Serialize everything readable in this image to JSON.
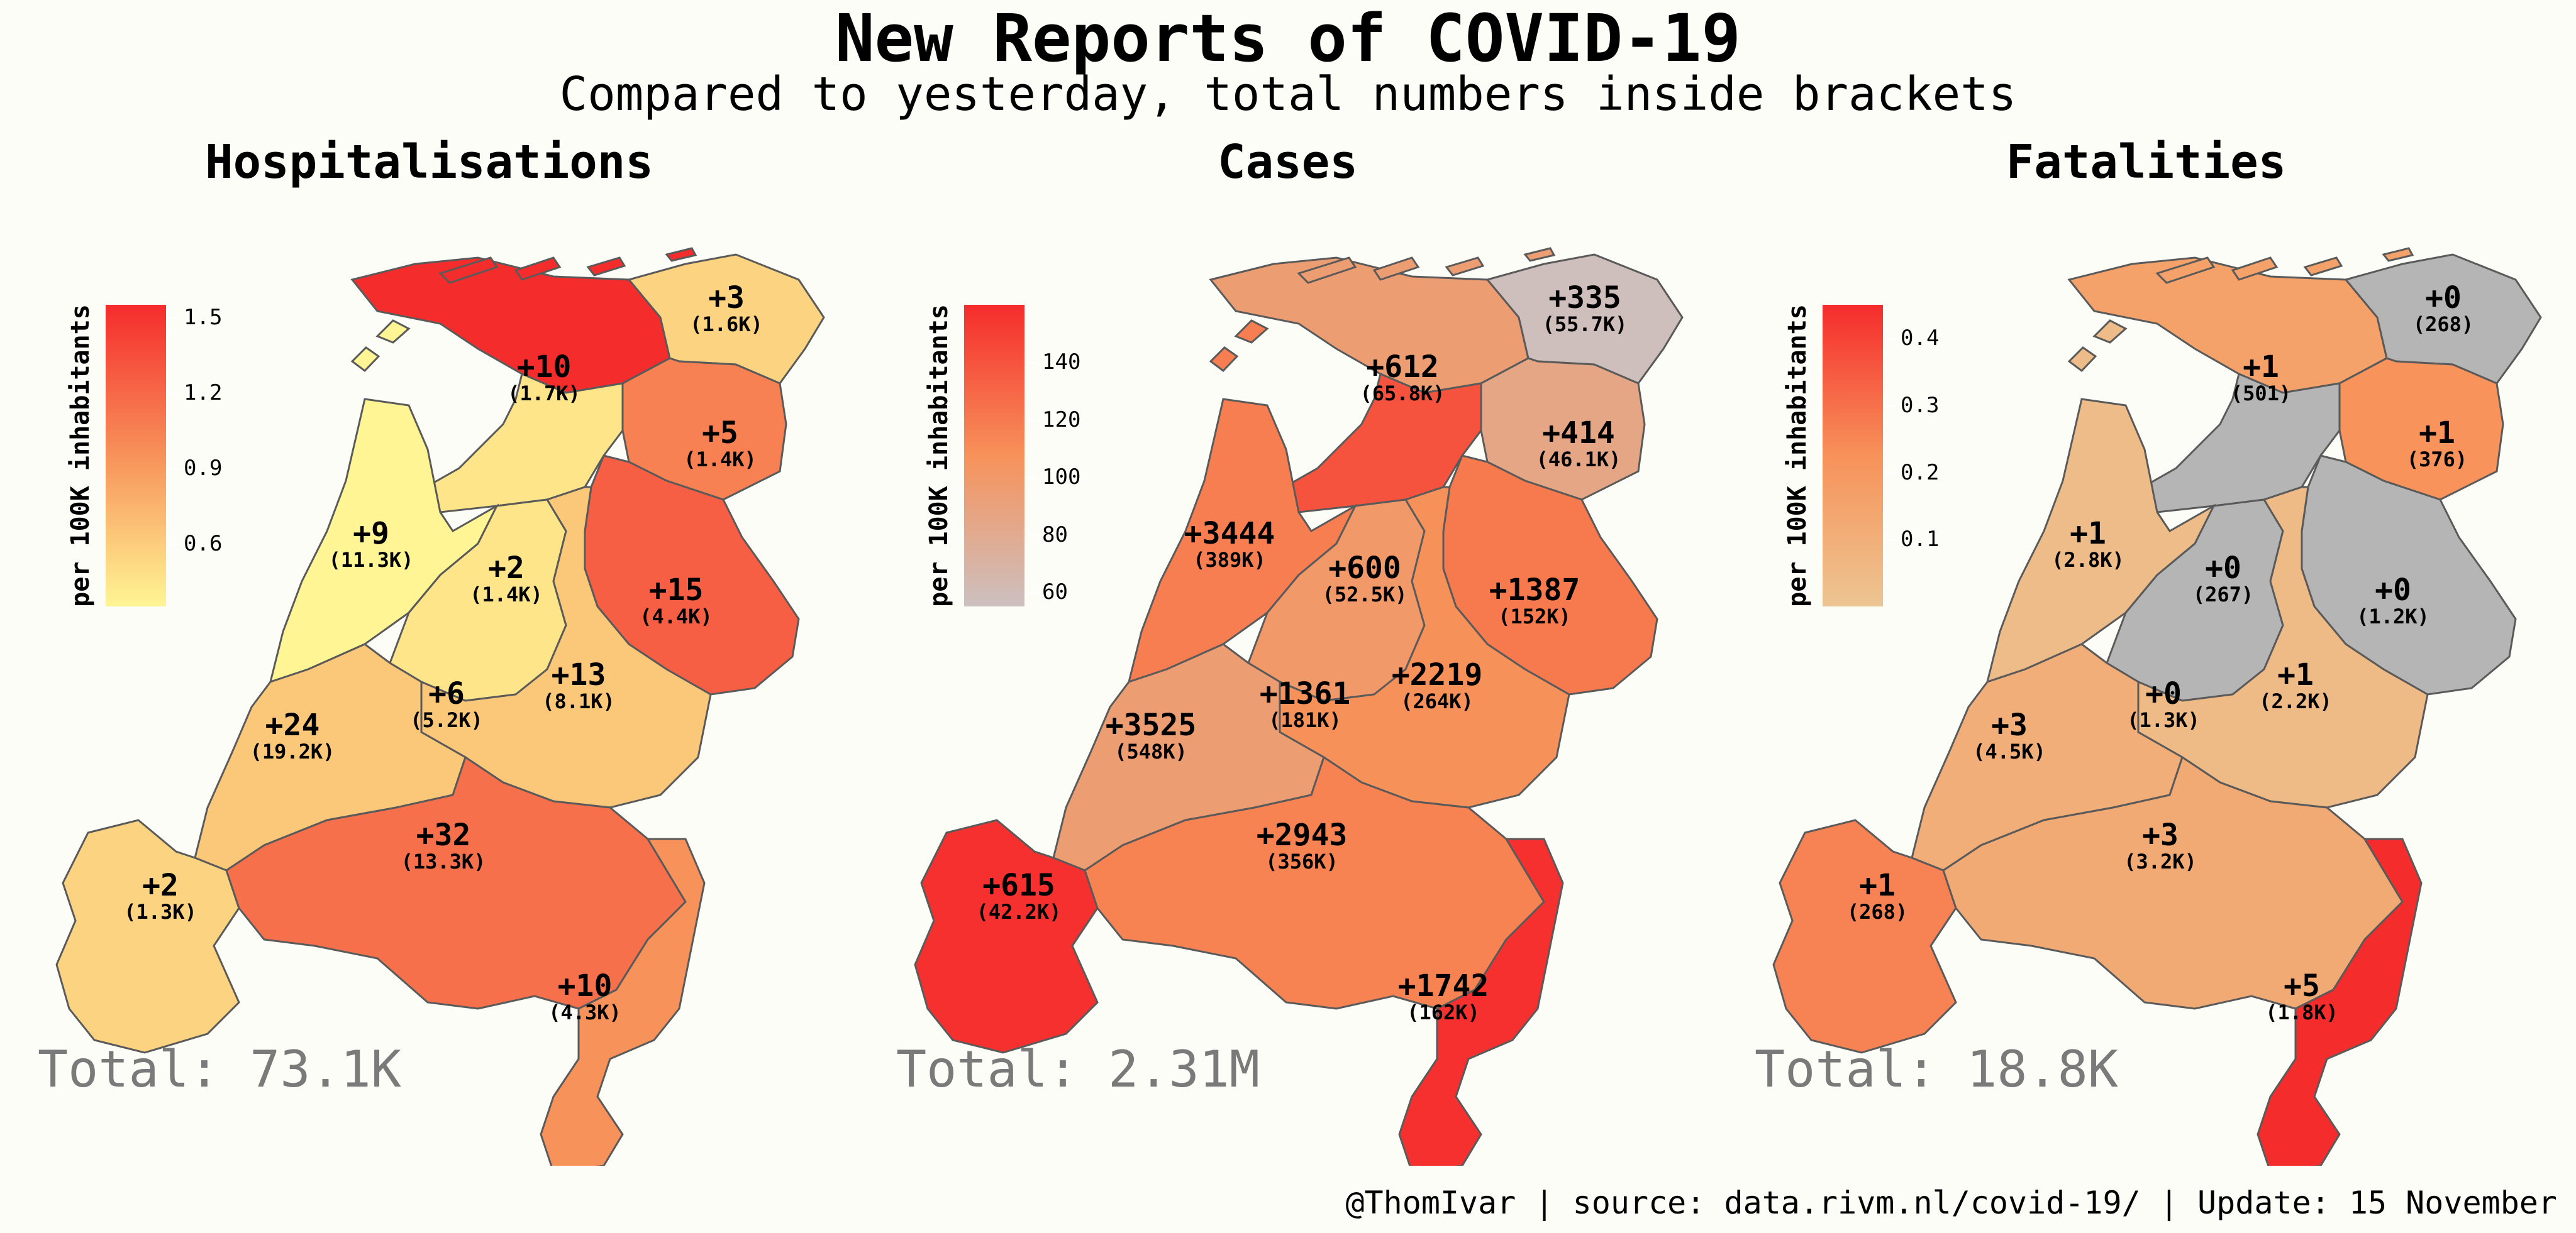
{
  "title": "New Reports of COVID-19",
  "subtitle": "Compared to yesterday, total numbers inside brackets",
  "footer": "@ThomIvar | source: data.rivm.nl/covid-19/ | Update: 15 November",
  "legend_title": "per 100K inhabitants",
  "panels": [
    {
      "title": "Hospitalisations",
      "total": "Total: 73.1K",
      "scale": {
        "min": 0.35,
        "max": 1.55,
        "low_color": "#fff594",
        "high_color": "#f52c2c"
      },
      "legend_ticks": [
        "1.5",
        "1.2",
        "0.9",
        "0.6"
      ],
      "legend_tick_values": [
        1.5,
        1.2,
        0.9,
        0.6
      ],
      "regions": {
        "groningen": {
          "change": "+3",
          "total": "(1.6K)",
          "value": 0.55
        },
        "friesland": {
          "change": "+10",
          "total": "(1.7K)",
          "value": 1.55
        },
        "drenthe": {
          "change": "+5",
          "total": "(1.4K)",
          "value": 1.05
        },
        "overijssel": {
          "change": "+15",
          "total": "(4.4K)",
          "value": 1.25
        },
        "flevoland": {
          "change": "+2",
          "total": "(1.4K)",
          "value": 0.45
        },
        "noord_holland": {
          "change": "+9",
          "total": "(11.3K)",
          "value": 0.35
        },
        "utrecht": {
          "change": "+6",
          "total": "(5.2K)",
          "value": 0.45
        },
        "gelderland": {
          "change": "+13",
          "total": "(8.1K)",
          "value": 0.62
        },
        "zuid_holland": {
          "change": "+24",
          "total": "(19.2K)",
          "value": 0.62
        },
        "zeeland": {
          "change": "+2",
          "total": "(1.3K)",
          "value": 0.55
        },
        "noord_brabant": {
          "change": "+32",
          "total": "(13.3K)",
          "value": 1.15
        },
        "limburg": {
          "change": "+10",
          "total": "(4.3K)",
          "value": 0.95
        }
      }
    },
    {
      "title": "Cases",
      "total": "Total: 2.31M",
      "scale": {
        "min": 55,
        "max": 160,
        "low_color": "#ccc0c0",
        "high_color": "#f52c2c"
      },
      "legend_ticks": [
        "140",
        "120",
        "100",
        "80",
        "60"
      ],
      "legend_tick_values": [
        140,
        120,
        100,
        80,
        60
      ],
      "regions": {
        "groningen": {
          "change": "+335",
          "total": "(55.7K)",
          "value": 57
        },
        "friesland": {
          "change": "+612",
          "total": "(65.8K)",
          "value": 95
        },
        "drenthe": {
          "change": "+414",
          "total": "(46.1K)",
          "value": 85
        },
        "overijssel": {
          "change": "+1387",
          "total": "(152K)",
          "value": 120
        },
        "flevoland": {
          "change": "+600",
          "total": "(52.5K)",
          "value": 140
        },
        "noord_holland": {
          "change": "+3444",
          "total": "(389K)",
          "value": 118
        },
        "utrecht": {
          "change": "+1361",
          "total": "(181K)",
          "value": 100
        },
        "gelderland": {
          "change": "+2219",
          "total": "(264K)",
          "value": 108
        },
        "zuid_holland": {
          "change": "+3525",
          "total": "(548K)",
          "value": 95
        },
        "zeeland": {
          "change": "+615",
          "total": "(42.2K)",
          "value": 158
        },
        "noord_brabant": {
          "change": "+2943",
          "total": "(356K)",
          "value": 115
        },
        "limburg": {
          "change": "+1742",
          "total": "(162K)",
          "value": 158
        }
      }
    },
    {
      "title": "Fatalities",
      "total": "Total: 18.8K",
      "scale": {
        "min": 0.0,
        "max": 0.45,
        "low_color": "#ecc592",
        "high_color": "#f52c2c",
        "zero_color": "#b5b5b5"
      },
      "legend_ticks": [
        "0.4",
        "0.3",
        "0.2",
        "0.1"
      ],
      "legend_tick_values": [
        0.4,
        0.3,
        0.2,
        0.1
      ],
      "regions": {
        "groningen": {
          "change": "+0",
          "total": "(268)",
          "value": 0
        },
        "friesland": {
          "change": "+1",
          "total": "(501)",
          "value": 0.16
        },
        "drenthe": {
          "change": "+1",
          "total": "(376)",
          "value": 0.22
        },
        "overijssel": {
          "change": "+0",
          "total": "(1.2K)",
          "value": 0
        },
        "flevoland": {
          "change": "+0",
          "total": "(267)",
          "value": 0
        },
        "noord_holland": {
          "change": "+1",
          "total": "(2.8K)",
          "value": 0.04
        },
        "utrecht": {
          "change": "+0",
          "total": "(1.3K)",
          "value": 0
        },
        "gelderland": {
          "change": "+1",
          "total": "(2.2K)",
          "value": 0.05
        },
        "zuid_holland": {
          "change": "+3",
          "total": "(4.5K)",
          "value": 0.1
        },
        "zeeland": {
          "change": "+1",
          "total": "(268)",
          "value": 0.26
        },
        "noord_brabant": {
          "change": "+3",
          "total": "(3.2K)",
          "value": 0.12
        },
        "limburg": {
          "change": "+5",
          "total": "(1.8K)",
          "value": 0.45
        }
      }
    }
  ]
}
